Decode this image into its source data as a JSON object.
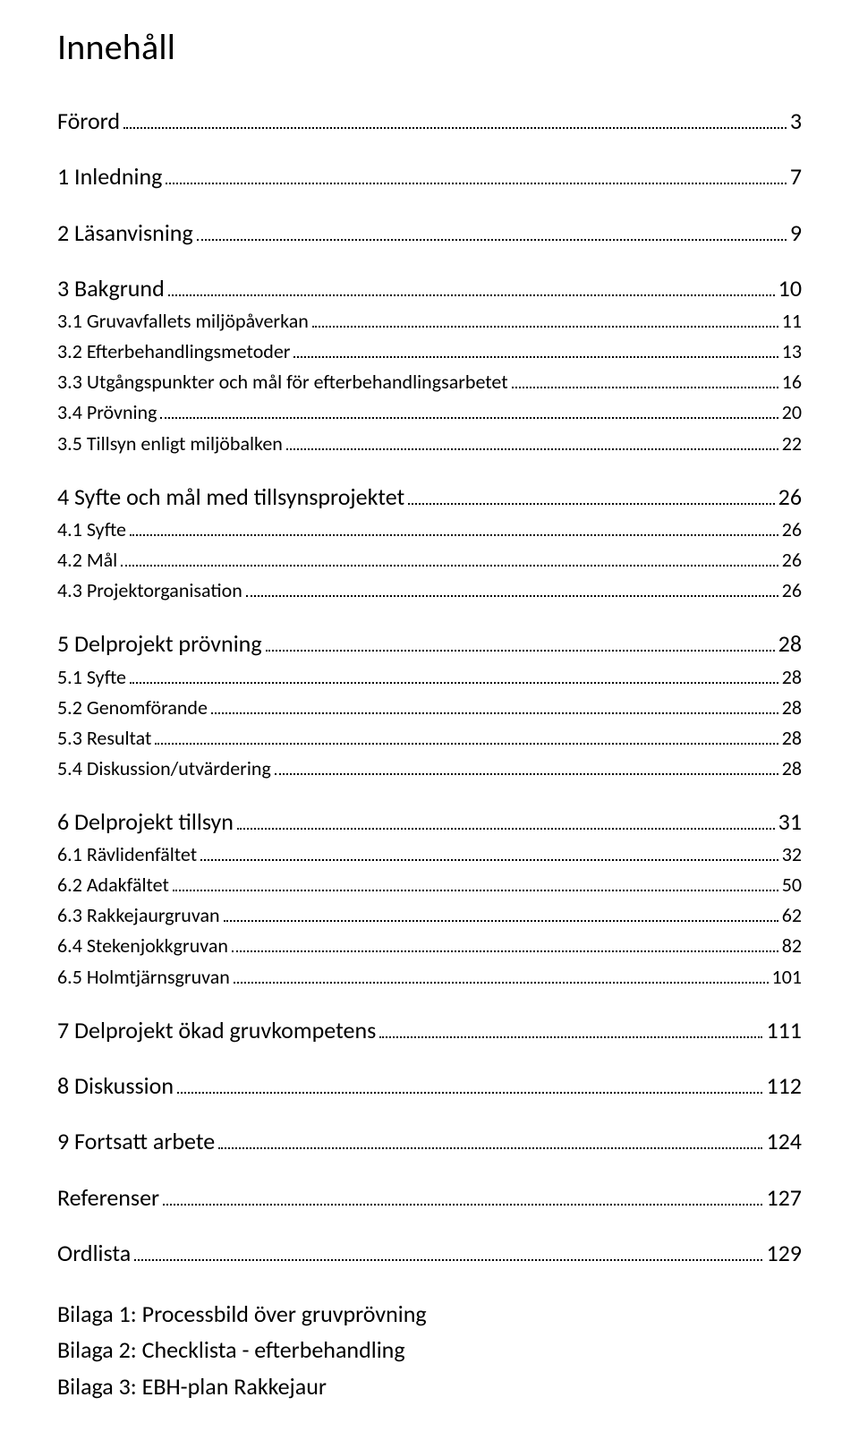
{
  "title": "Innehåll",
  "toc": [
    {
      "level": "section",
      "label": "Förord",
      "page": "3",
      "first": true
    },
    {
      "level": "section",
      "label": "1 Inledning",
      "page": "7"
    },
    {
      "level": "section",
      "label": "2 Läsanvisning",
      "page": "9"
    },
    {
      "level": "section",
      "label": "3 Bakgrund",
      "page": "10"
    },
    {
      "level": "sub",
      "label": "3.1 Gruvavfallets miljöpåverkan",
      "page": "11"
    },
    {
      "level": "sub",
      "label": "3.2 Efterbehandlingsmetoder",
      "page": "13"
    },
    {
      "level": "sub",
      "label": "3.3 Utgångspunkter och mål för efterbehandlingsarbetet",
      "page": "16"
    },
    {
      "level": "sub",
      "label": "3.4 Prövning",
      "page": "20"
    },
    {
      "level": "sub",
      "label": "3.5 Tillsyn enligt miljöbalken",
      "page": "22"
    },
    {
      "level": "section",
      "label": "4 Syfte och mål med tillsynsprojektet",
      "page": "26"
    },
    {
      "level": "sub",
      "label": "4.1 Syfte",
      "page": "26"
    },
    {
      "level": "sub",
      "label": "4.2 Mål",
      "page": "26"
    },
    {
      "level": "sub",
      "label": "4.3 Projektorganisation",
      "page": "26"
    },
    {
      "level": "section",
      "label": "5 Delprojekt prövning",
      "page": "28"
    },
    {
      "level": "sub",
      "label": "5.1 Syfte",
      "page": "28"
    },
    {
      "level": "sub",
      "label": "5.2 Genomförande",
      "page": "28"
    },
    {
      "level": "sub",
      "label": "5.3 Resultat",
      "page": "28"
    },
    {
      "level": "sub",
      "label": "5.4 Diskussion/utvärdering",
      "page": "28"
    },
    {
      "level": "section",
      "label": "6 Delprojekt tillsyn",
      "page": "31"
    },
    {
      "level": "sub",
      "label": "6.1 Rävlidenfältet",
      "page": "32"
    },
    {
      "level": "sub",
      "label": "6.2 Adakfältet",
      "page": "50"
    },
    {
      "level": "sub",
      "label": "6.3 Rakkejaurgruvan",
      "page": "62"
    },
    {
      "level": "sub",
      "label": "6.4 Stekenjokkgruvan",
      "page": "82"
    },
    {
      "level": "sub",
      "label": "6.5 Holmtjärnsgruvan",
      "page": "101"
    },
    {
      "level": "section",
      "label": "7 Delprojekt ökad gruvkompetens",
      "page": "111"
    },
    {
      "level": "section",
      "label": "8 Diskussion",
      "page": "112"
    },
    {
      "level": "section",
      "label": "9 Fortsatt arbete",
      "page": "124"
    },
    {
      "level": "section",
      "label": "Referenser",
      "page": "127"
    },
    {
      "level": "section",
      "label": "Ordlista",
      "page": "129"
    }
  ],
  "appendices": [
    "Bilaga 1: Processbild över gruvprövning",
    "Bilaga 2: Checklista - efterbehandling",
    "Bilaga 3: EBH-plan Rakkejaur"
  ]
}
